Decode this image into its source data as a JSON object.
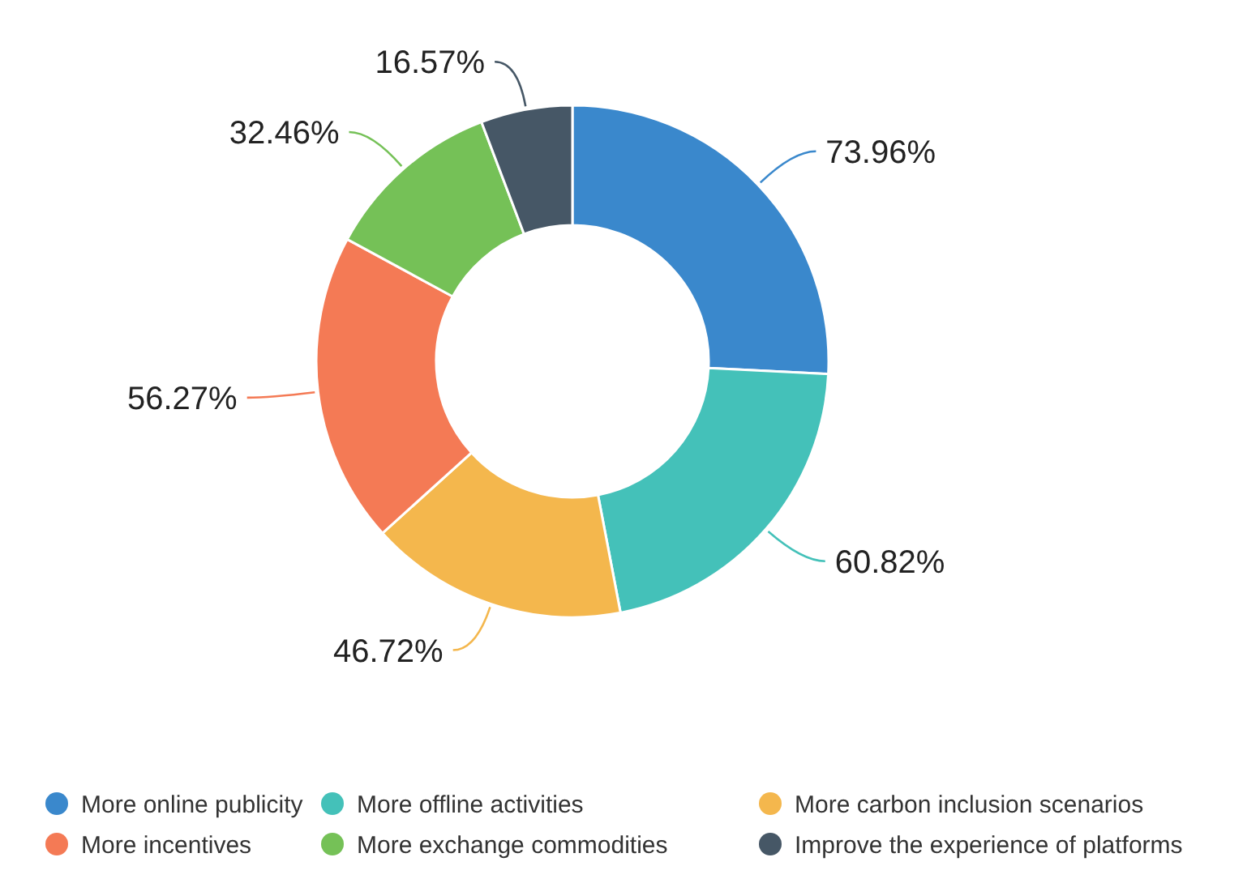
{
  "chart_data": {
    "type": "donut",
    "categories": [
      "More online publicity",
      "More offline activities",
      "More carbon inclusion scenarios",
      "More incentives",
      "More exchange commodities",
      "Improve the experience of platforms"
    ],
    "values": [
      73.96,
      60.82,
      46.72,
      56.27,
      32.46,
      16.57
    ],
    "value_labels": [
      "73.96%",
      "60.82%",
      "46.72%",
      "56.27%",
      "32.46%",
      "16.57%"
    ],
    "colors": [
      "#3a88cc",
      "#44c1b9",
      "#f4b74d",
      "#f47a55",
      "#75c157",
      "#465766"
    ],
    "legend": "bottom"
  }
}
